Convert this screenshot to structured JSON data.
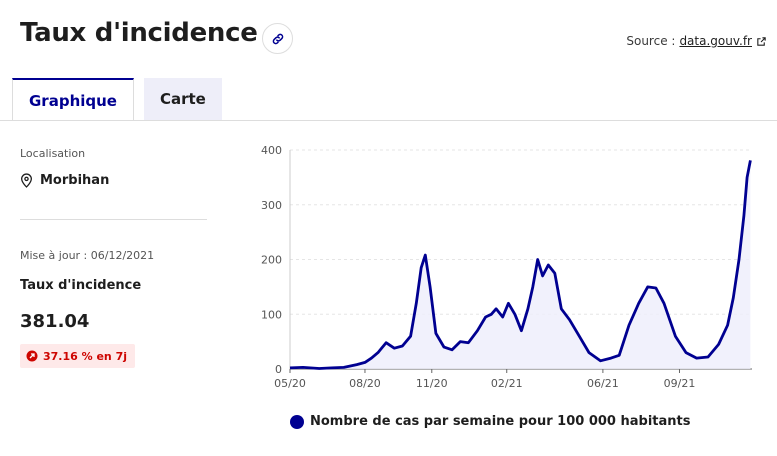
{
  "header": {
    "title": "Taux d'incidence",
    "source_label": "Source :",
    "source_link": "data.gouv.fr"
  },
  "tabs": [
    {
      "label": "Graphique",
      "active": true
    },
    {
      "label": "Carte",
      "active": false
    }
  ],
  "sidebar": {
    "location_label": "Localisation",
    "location_value": "Morbihan",
    "update_label": "Mise à jour : 06/12/2021",
    "metric_name": "Taux d'incidence",
    "metric_value": "381.04",
    "change_badge": "37.16 % en 7j"
  },
  "colors": {
    "accent": "#000091",
    "badge_bg": "#fee9e9",
    "badge_text": "#ce0500"
  },
  "icons": {
    "link": "link-icon",
    "external": "external-link-icon",
    "location": "map-pin-icon",
    "trend": "arrow-up-right-icon"
  },
  "chart_data": {
    "type": "area",
    "ylim": [
      0,
      400
    ],
    "yticks": [
      "0",
      "100",
      "200",
      "300",
      "400"
    ],
    "xticks": [
      "05/20",
      "08/20",
      "11/20",
      "02/21",
      "06/21",
      "09/21"
    ],
    "grid": true,
    "legend_position": "bottom",
    "series": [
      {
        "name": "Nombre de cas par semaine pour 100 000 habitants",
        "color": "#000091",
        "x": [
          "2020-05-20",
          "2020-06-05",
          "2020-06-25",
          "2020-07-10",
          "2020-07-25",
          "2020-08-10",
          "2020-08-20",
          "2020-08-28",
          "2020-09-05",
          "2020-09-15",
          "2020-09-25",
          "2020-10-05",
          "2020-10-15",
          "2020-10-22",
          "2020-10-28",
          "2020-11-02",
          "2020-11-08",
          "2020-11-15",
          "2020-11-25",
          "2020-12-05",
          "2020-12-15",
          "2020-12-25",
          "2021-01-05",
          "2021-01-15",
          "2021-01-22",
          "2021-01-28",
          "2021-02-05",
          "2021-02-12",
          "2021-02-20",
          "2021-02-28",
          "2021-03-08",
          "2021-03-14",
          "2021-03-20",
          "2021-03-26",
          "2021-04-02",
          "2021-04-10",
          "2021-04-18",
          "2021-04-28",
          "2021-05-10",
          "2021-05-22",
          "2021-06-05",
          "2021-06-18",
          "2021-06-28",
          "2021-07-10",
          "2021-07-22",
          "2021-08-02",
          "2021-08-12",
          "2021-08-22",
          "2021-09-05",
          "2021-09-18",
          "2021-10-01",
          "2021-10-15",
          "2021-10-28",
          "2021-11-08",
          "2021-11-15",
          "2021-11-22",
          "2021-11-28",
          "2021-12-02",
          "2021-12-06"
        ],
        "values": [
          2,
          3,
          1,
          2,
          3,
          8,
          12,
          20,
          30,
          48,
          38,
          42,
          60,
          120,
          185,
          208,
          150,
          65,
          40,
          35,
          50,
          48,
          70,
          95,
          100,
          110,
          95,
          120,
          100,
          70,
          110,
          150,
          200,
          170,
          190,
          175,
          110,
          90,
          60,
          30,
          15,
          20,
          25,
          80,
          120,
          150,
          148,
          120,
          60,
          30,
          20,
          22,
          45,
          80,
          130,
          200,
          280,
          350,
          381
        ]
      }
    ]
  }
}
